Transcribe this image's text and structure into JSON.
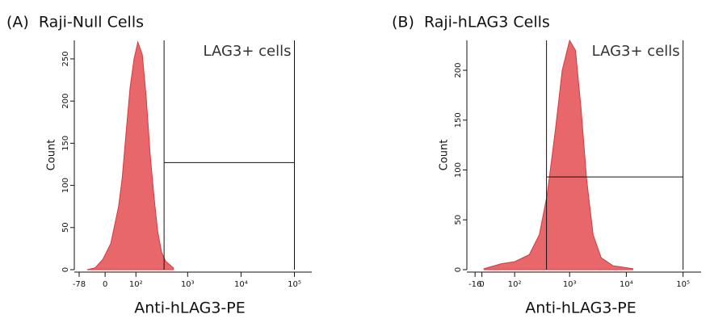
{
  "chart_data": [
    {
      "type": "histogram",
      "title": "(A)  Raji-Null Cells",
      "x_label": "Anti-hLAG3-PE",
      "y_label": "Count",
      "xscale": "biexponential",
      "color": "#e8676a",
      "x": [
        -49,
        -26,
        -6,
        14,
        35,
        46,
        60,
        74,
        91,
        110,
        136,
        162,
        194,
        229,
        271,
        322,
        385,
        541
      ],
      "values": [
        0,
        2,
        12,
        31,
        75,
        109,
        167,
        216,
        250,
        270,
        255,
        206,
        138,
        89,
        46,
        21,
        10,
        2
      ],
      "xlim": [
        -100,
        160000
      ],
      "ylim": [
        0,
        272
      ],
      "xticks": [
        -78,
        0,
        {
          "value": 100,
          "label": "10²"
        },
        {
          "value": 1000,
          "label": "10³"
        },
        {
          "value": 10000,
          "label": "10⁴"
        },
        {
          "value": 100000,
          "label": "10⁵"
        }
      ],
      "yticks": [
        0,
        50,
        100,
        150,
        200,
        250
      ],
      "gate": {
        "label": "LAG3+ cells",
        "x": [
          360,
          100000
        ],
        "y": 127
      }
    },
    {
      "type": "histogram",
      "title": "(B)  Raji-hLAG3 Cells",
      "x_label": "Anti-hLAG3-PE",
      "y_label": "Count",
      "xscale": "biexponential",
      "color": "#e8676a",
      "x": [
        5,
        50,
        100,
        190,
        290,
        400,
        560,
        740,
        1000,
        1270,
        1600,
        2000,
        2600,
        3600,
        5800,
        13000
      ],
      "values": [
        1,
        6,
        8,
        15,
        35,
        75,
        140,
        200,
        230,
        220,
        160,
        90,
        35,
        12,
        4,
        1
      ],
      "xlim": [
        -37,
        160000
      ],
      "ylim": [
        0,
        230
      ],
      "xticks": [
        -16,
        0,
        {
          "value": 100,
          "label": "10²"
        },
        {
          "value": 1000,
          "label": "10³"
        },
        {
          "value": 10000,
          "label": "10⁴"
        },
        {
          "value": 100000,
          "label": "10⁵"
        }
      ],
      "yticks": [
        0,
        50,
        100,
        150,
        200
      ],
      "gate": {
        "label": "LAG3+ cells",
        "x": [
          390,
          100000
        ],
        "y": 93
      }
    }
  ]
}
